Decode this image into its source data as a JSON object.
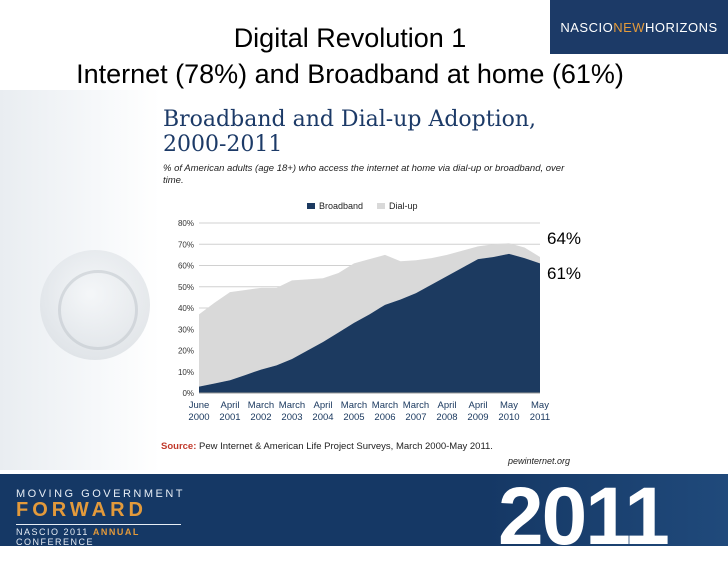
{
  "slide": {
    "title_line1": "Digital Revolution 1",
    "title_line2": "Internet (78%) and Broadband at home (61%)",
    "logo_parts": [
      "NASCIO",
      "NEW",
      "HORIZONS"
    ],
    "annotation_64": "64%",
    "annotation_61": "61%"
  },
  "chart": {
    "title_line1": "Broadband and Dial-up Adoption,",
    "title_line2": "2000-2011",
    "subtitle": "% of American adults (age 18+) who access the internet at home via dial-up or broadband, over time.",
    "source_label": "Source:",
    "source_text": " Pew Internet & American Life Project Surveys, March 2000-May 2011.",
    "credit": "pewinternet.org"
  },
  "footer": {
    "line1": "MOVING GOVERNMENT",
    "line2": "FORWARD",
    "line3_a": "NASCIO 2011 ",
    "line3_b": "ANNUAL",
    "line3_c": " CONFERENCE",
    "year": "2011"
  },
  "chart_data": {
    "type": "area",
    "stacked": true,
    "title": "Broadband and Dial-up Adoption, 2000-2011",
    "xlabel": "",
    "ylabel": "",
    "ylim": [
      0,
      80
    ],
    "yticks": [
      0,
      10,
      20,
      30,
      40,
      50,
      60,
      70,
      80
    ],
    "ytick_labels": [
      "0%",
      "10%",
      "20%",
      "30%",
      "40%",
      "50%",
      "60%",
      "70%",
      "80%"
    ],
    "gridlines": true,
    "legend_position": "top",
    "x_tick_labels": [
      [
        "June",
        "2000"
      ],
      [
        "April",
        "2001"
      ],
      [
        "March",
        "2002"
      ],
      [
        "March",
        "2003"
      ],
      [
        "April",
        "2004"
      ],
      [
        "March",
        "2005"
      ],
      [
        "March",
        "2006"
      ],
      [
        "March",
        "2007"
      ],
      [
        "April",
        "2008"
      ],
      [
        "April",
        "2009"
      ],
      [
        "May",
        "2010"
      ],
      [
        "May",
        "2011"
      ]
    ],
    "x": [
      0,
      0.5,
      1,
      1.5,
      2,
      2.5,
      3,
      3.5,
      4,
      4.5,
      5,
      5.5,
      6,
      6.5,
      7,
      7.5,
      8,
      8.5,
      9,
      9.5,
      10,
      10.5,
      11
    ],
    "series": [
      {
        "name": "Broadband",
        "color": "#1c3a60",
        "values": [
          3,
          4.5,
          6,
          8.5,
          11,
          13,
          16,
          20,
          24,
          28.5,
          33,
          37,
          41.5,
          44,
          47,
          51,
          55,
          59,
          63,
          64,
          65.5,
          63.5,
          61
        ]
      },
      {
        "name": "Dial-up",
        "color": "#d9d9d9",
        "values": [
          34,
          38,
          41.5,
          40,
          38.5,
          36.5,
          37,
          33.5,
          30,
          28,
          28,
          26,
          23.5,
          18,
          15.5,
          12.5,
          10,
          8,
          6,
          6,
          5,
          5,
          3
        ]
      }
    ],
    "annotations": [
      "64%",
      "61%"
    ]
  }
}
